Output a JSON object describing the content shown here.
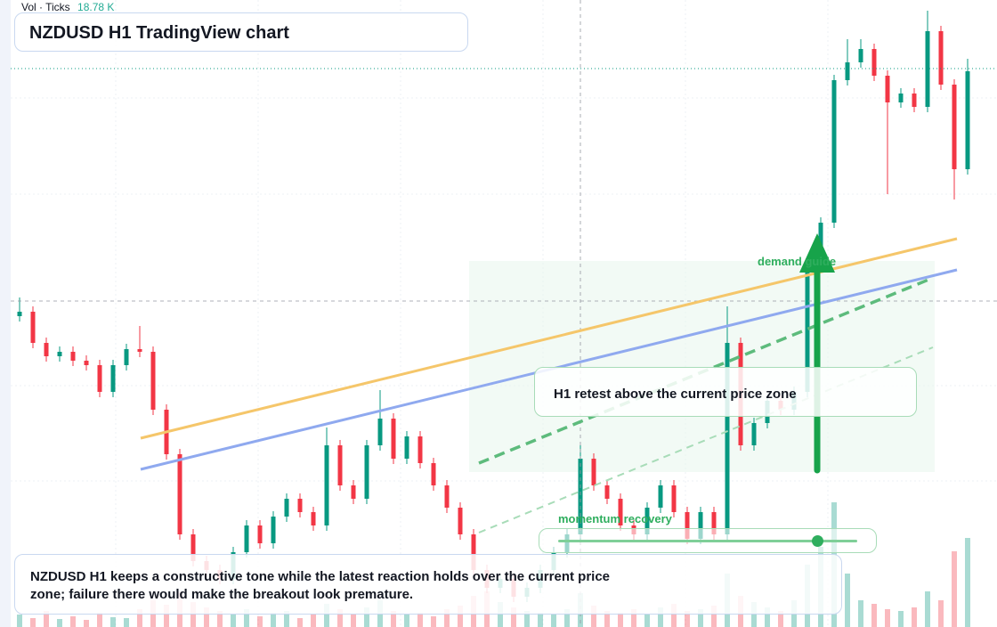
{
  "chart_data": {
    "type": "candlestick",
    "title": "NZDUSD H1 TradingView chart",
    "volume_label": "Vol · Ticks",
    "volume_value": "18.78 K",
    "annotations": [
      "demand guide",
      "H1 retest above the current price zone",
      "momentum recovery"
    ],
    "note": "NZDUSD H1 keeps a constructive tone while the latest reaction holds over the current price zone; failure there would make the breakout look premature.",
    "up_color": "#089981",
    "down_color": "#f23645",
    "ylim": [
      0,
      704
    ],
    "vlim": [
      0,
      150
    ],
    "open": [
      349,
      354,
      319,
      304,
      309,
      299,
      294,
      264,
      294,
      312,
      309,
      244,
      194,
      104,
      74,
      64,
      54,
      84,
      114,
      94,
      124,
      144,
      129,
      114,
      204,
      159,
      144,
      204,
      234,
      189,
      214,
      184,
      159,
      134,
      104,
      64,
      44,
      54,
      34,
      44,
      64,
      84,
      104,
      189,
      159,
      144,
      114,
      104,
      134,
      159,
      129,
      99,
      129,
      104,
      319,
      204,
      229,
      254,
      244,
      264,
      404,
      454,
      614,
      634,
      649,
      619,
      589,
      599,
      584,
      669,
      609,
      514
    ],
    "high": [
      370,
      360,
      325,
      315,
      315,
      305,
      300,
      300,
      318,
      338,
      315,
      250,
      200,
      110,
      80,
      70,
      90,
      120,
      120,
      130,
      150,
      150,
      135,
      224,
      210,
      165,
      210,
      266,
      240,
      220,
      220,
      190,
      165,
      140,
      110,
      70,
      60,
      60,
      50,
      70,
      90,
      110,
      204,
      195,
      165,
      150,
      120,
      140,
      165,
      165,
      135,
      135,
      135,
      360,
      325,
      235,
      260,
      260,
      270,
      410,
      460,
      620,
      660,
      660,
      655,
      625,
      605,
      605,
      692,
      675,
      615,
      638
    ],
    "low": [
      343,
      313,
      298,
      298,
      293,
      288,
      258,
      258,
      288,
      303,
      238,
      188,
      98,
      68,
      58,
      48,
      48,
      78,
      88,
      88,
      118,
      123,
      108,
      108,
      153,
      138,
      138,
      198,
      183,
      183,
      178,
      153,
      128,
      98,
      58,
      38,
      38,
      28,
      28,
      38,
      58,
      78,
      98,
      153,
      138,
      108,
      98,
      98,
      128,
      123,
      93,
      93,
      98,
      98,
      198,
      198,
      223,
      238,
      238,
      258,
      398,
      448,
      608,
      628,
      613,
      486,
      583,
      578,
      578,
      603,
      480,
      508
    ],
    "close": [
      354,
      319,
      304,
      309,
      299,
      294,
      264,
      294,
      312,
      309,
      244,
      194,
      104,
      74,
      64,
      54,
      84,
      114,
      94,
      124,
      144,
      129,
      114,
      204,
      159,
      144,
      204,
      234,
      189,
      214,
      184,
      159,
      134,
      104,
      64,
      44,
      54,
      34,
      44,
      64,
      84,
      104,
      189,
      159,
      144,
      114,
      104,
      134,
      159,
      129,
      99,
      129,
      104,
      319,
      204,
      229,
      254,
      244,
      264,
      404,
      454,
      614,
      634,
      649,
      619,
      589,
      599,
      584,
      669,
      609,
      514,
      624
    ],
    "volume": [
      14,
      10,
      18,
      9,
      12,
      8,
      16,
      11,
      10,
      20,
      30,
      25,
      40,
      28,
      22,
      18,
      15,
      20,
      12,
      16,
      18,
      10,
      14,
      26,
      20,
      15,
      22,
      30,
      18,
      14,
      16,
      12,
      20,
      24,
      35,
      40,
      28,
      22,
      18,
      16,
      14,
      20,
      38,
      24,
      18,
      16,
      20,
      14,
      22,
      26,
      18,
      20,
      24,
      60,
      35,
      28,
      22,
      18,
      30,
      70,
      90,
      140,
      60,
      30,
      26,
      20,
      18,
      22,
      40,
      30,
      85,
      100
    ]
  }
}
